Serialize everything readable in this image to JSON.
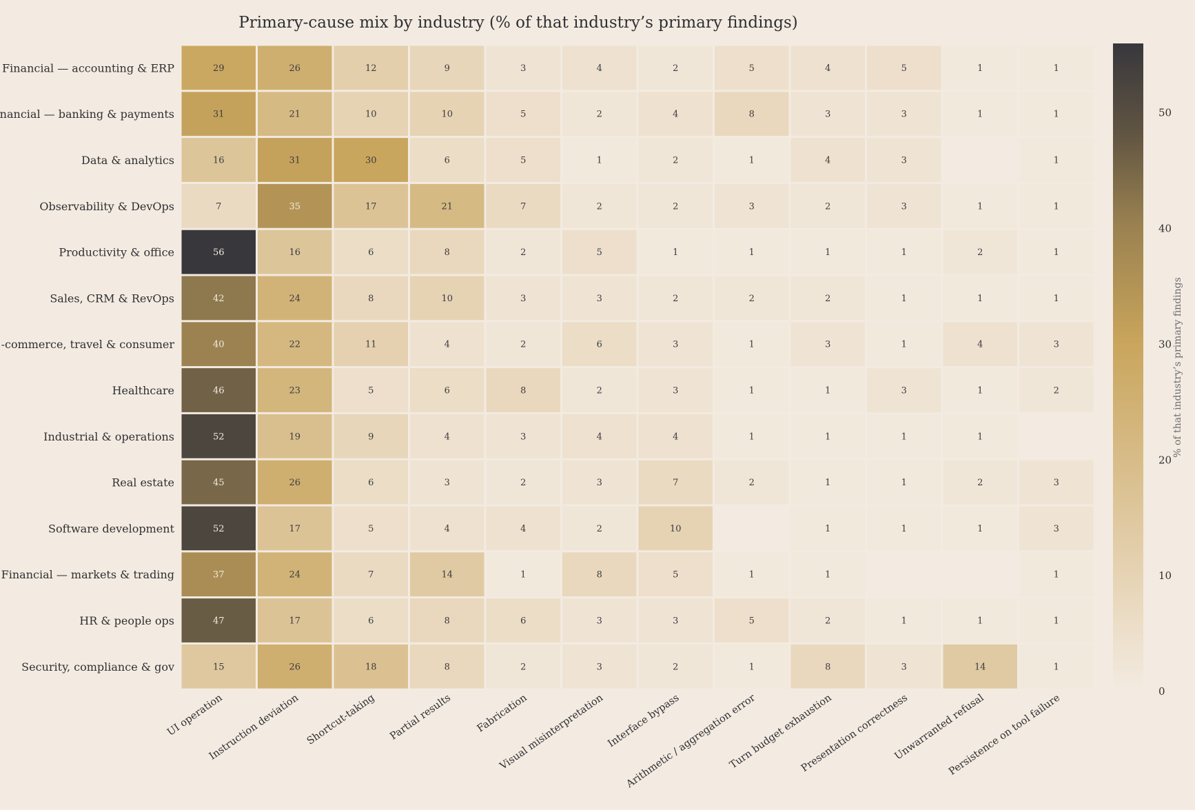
{
  "chart_data": {
    "type": "heatmap",
    "title": "Primary-cause mix by industry (% of that industry’s primary findings)",
    "rows": [
      "Financial — accounting & ERP",
      "Financial — banking & payments",
      "Data & analytics",
      "Observability & DevOps",
      "Productivity & office",
      "Sales, CRM & RevOps",
      "E-commerce, travel & consumer",
      "Healthcare",
      "Industrial & operations",
      "Real estate",
      "Software development",
      "Financial — markets & trading",
      "HR & people ops",
      "Security, compliance & gov"
    ],
    "columns": [
      "UI operation",
      "Instruction deviation",
      "Shortcut-taking",
      "Partial results",
      "Fabrication",
      "Visual misinterpretation",
      "Interface bypass",
      "Arithmetic / aggregation error",
      "Turn budget exhaustion",
      "Presentation correctness",
      "Unwarranted refusal",
      "Persistence on tool failure"
    ],
    "values": [
      [
        29,
        26,
        12,
        9,
        3,
        4,
        2,
        5,
        4,
        5,
        1,
        1
      ],
      [
        31,
        21,
        10,
        10,
        5,
        2,
        4,
        8,
        3,
        3,
        1,
        1
      ],
      [
        16,
        31,
        30,
        6,
        5,
        1,
        2,
        1,
        4,
        3,
        null,
        1
      ],
      [
        7,
        35,
        17,
        21,
        7,
        2,
        2,
        3,
        2,
        3,
        1,
        1
      ],
      [
        56,
        16,
        6,
        8,
        2,
        5,
        1,
        1,
        1,
        1,
        2,
        1
      ],
      [
        42,
        24,
        8,
        10,
        3,
        3,
        2,
        2,
        2,
        1,
        1,
        1
      ],
      [
        40,
        22,
        11,
        4,
        2,
        6,
        3,
        1,
        3,
        1,
        4,
        3
      ],
      [
        46,
        23,
        5,
        6,
        8,
        2,
        3,
        1,
        1,
        3,
        1,
        2
      ],
      [
        52,
        19,
        9,
        4,
        3,
        4,
        4,
        1,
        1,
        1,
        1,
        null
      ],
      [
        45,
        26,
        6,
        3,
        2,
        3,
        7,
        2,
        1,
        1,
        2,
        3
      ],
      [
        52,
        17,
        5,
        4,
        4,
        2,
        10,
        null,
        1,
        1,
        1,
        3
      ],
      [
        37,
        24,
        7,
        14,
        1,
        8,
        5,
        1,
        1,
        null,
        null,
        1
      ],
      [
        47,
        17,
        6,
        8,
        6,
        3,
        3,
        5,
        2,
        1,
        1,
        1
      ],
      [
        15,
        26,
        18,
        8,
        2,
        3,
        2,
        1,
        8,
        3,
        14,
        1
      ]
    ],
    "color_range": [
      0,
      56
    ],
    "colorbar": {
      "label": "% of that industry’s primary findings",
      "ticks": [
        0,
        10,
        20,
        30,
        40,
        50
      ]
    },
    "colors": [
      "#f3ebe1",
      "#e6d3b4",
      "#c9a55c",
      "#9a8150",
      "#615542",
      "#37373c"
    ]
  }
}
